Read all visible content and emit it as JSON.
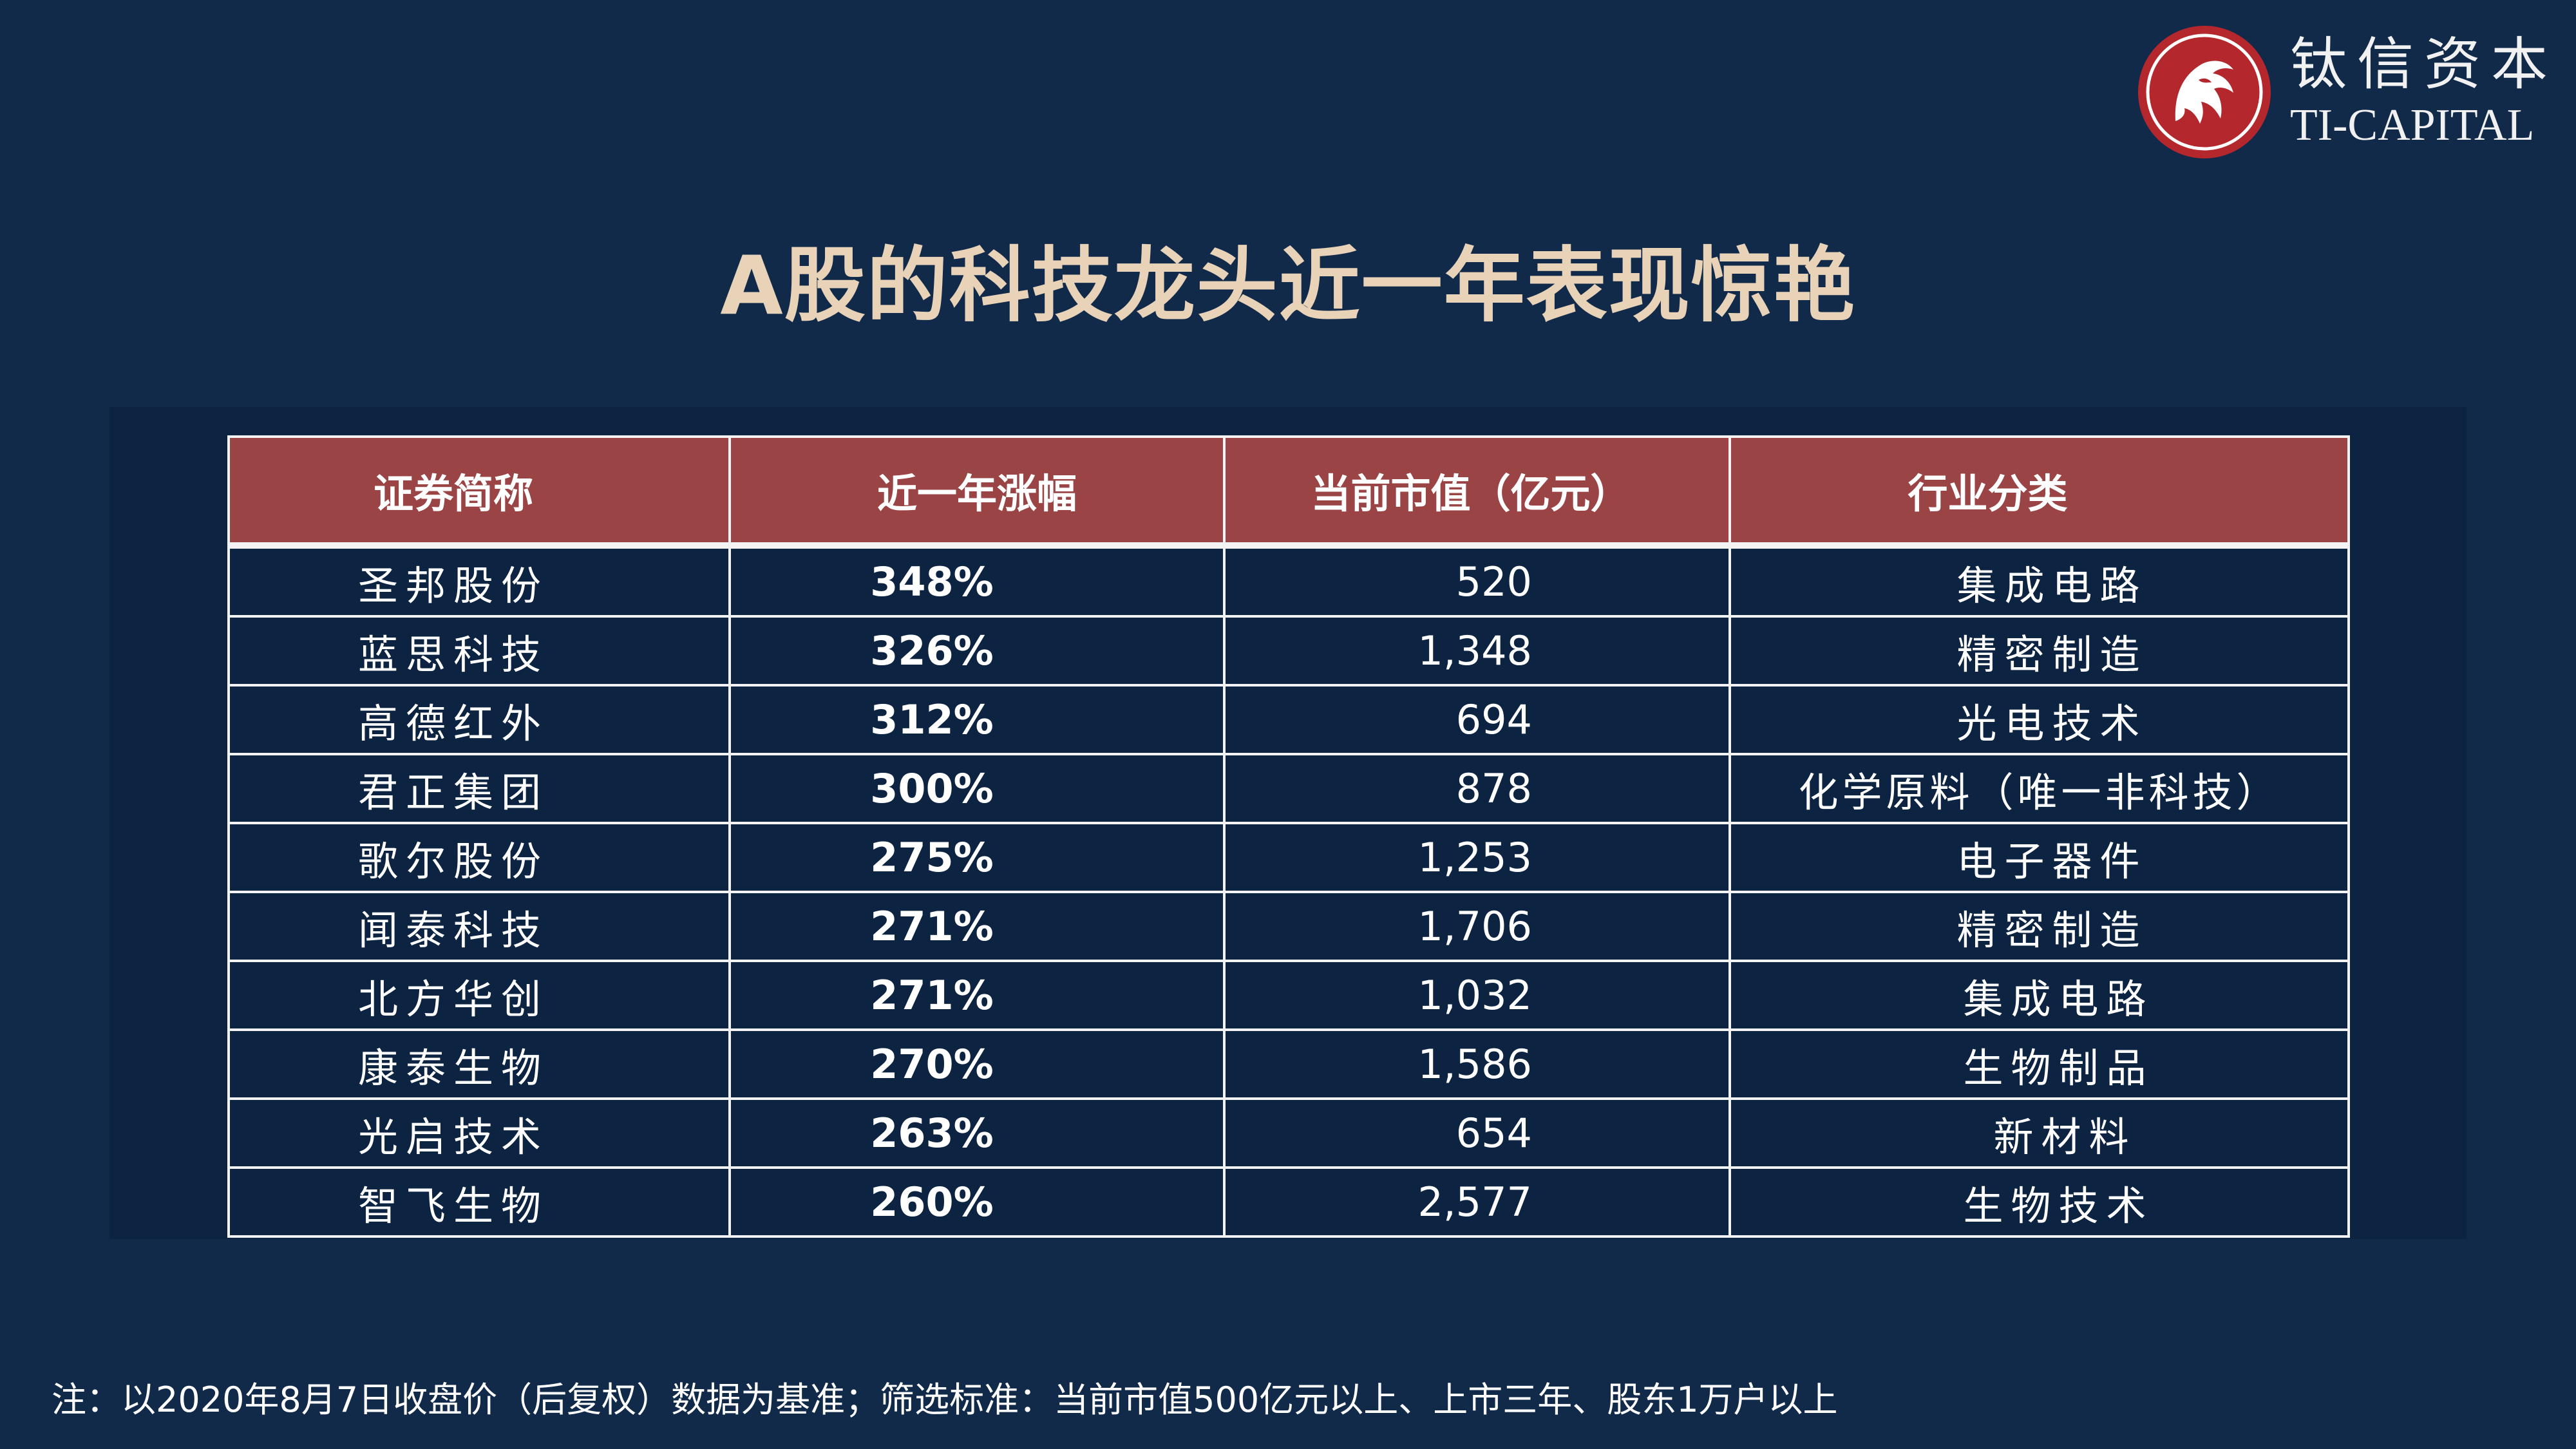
{
  "logo": {
    "cn": "钛信资本",
    "en": "TI-CAPITAL"
  },
  "title": "A股的科技龙头近一年表现惊艳",
  "table": {
    "headers": [
      "证券简称",
      "近一年涨幅",
      "当前市值（亿元）",
      "行业分类"
    ],
    "rows": [
      {
        "name": "圣邦股份",
        "gain": "348%",
        "cap": "520",
        "industry": "集成电路"
      },
      {
        "name": "蓝思科技",
        "gain": "326%",
        "cap": "1,348",
        "industry": "精密制造"
      },
      {
        "name": "高德红外",
        "gain": "312%",
        "cap": "694",
        "industry": "光电技术"
      },
      {
        "name": "君正集团",
        "gain": "300%",
        "cap": "878",
        "industry": "化学原料（唯一非科技）"
      },
      {
        "name": "歌尔股份",
        "gain": "275%",
        "cap": "1,253",
        "industry": "电子器件"
      },
      {
        "name": "闻泰科技",
        "gain": "271%",
        "cap": "1,706",
        "industry": "精密制造"
      },
      {
        "name": "北方华创",
        "gain": "271%",
        "cap": "1,032",
        "industry": "集成电路"
      },
      {
        "name": "康泰生物",
        "gain": "270%",
        "cap": "1,586",
        "industry": "生物制品"
      },
      {
        "name": "光启技术",
        "gain": "263%",
        "cap": "654",
        "industry": "新材料"
      },
      {
        "name": "智飞生物",
        "gain": "260%",
        "cap": "2,577",
        "industry": "生物技术"
      }
    ]
  },
  "footnote": "注：以2020年8月7日收盘价（后复权）数据为基准；筛选标准：当前市值500亿元以上、上市三年、股东1万户以上",
  "colors": {
    "background": "#112a4a",
    "header": "#9a4446",
    "title": "#e8d2b8",
    "logo_red": "#b3272d"
  }
}
